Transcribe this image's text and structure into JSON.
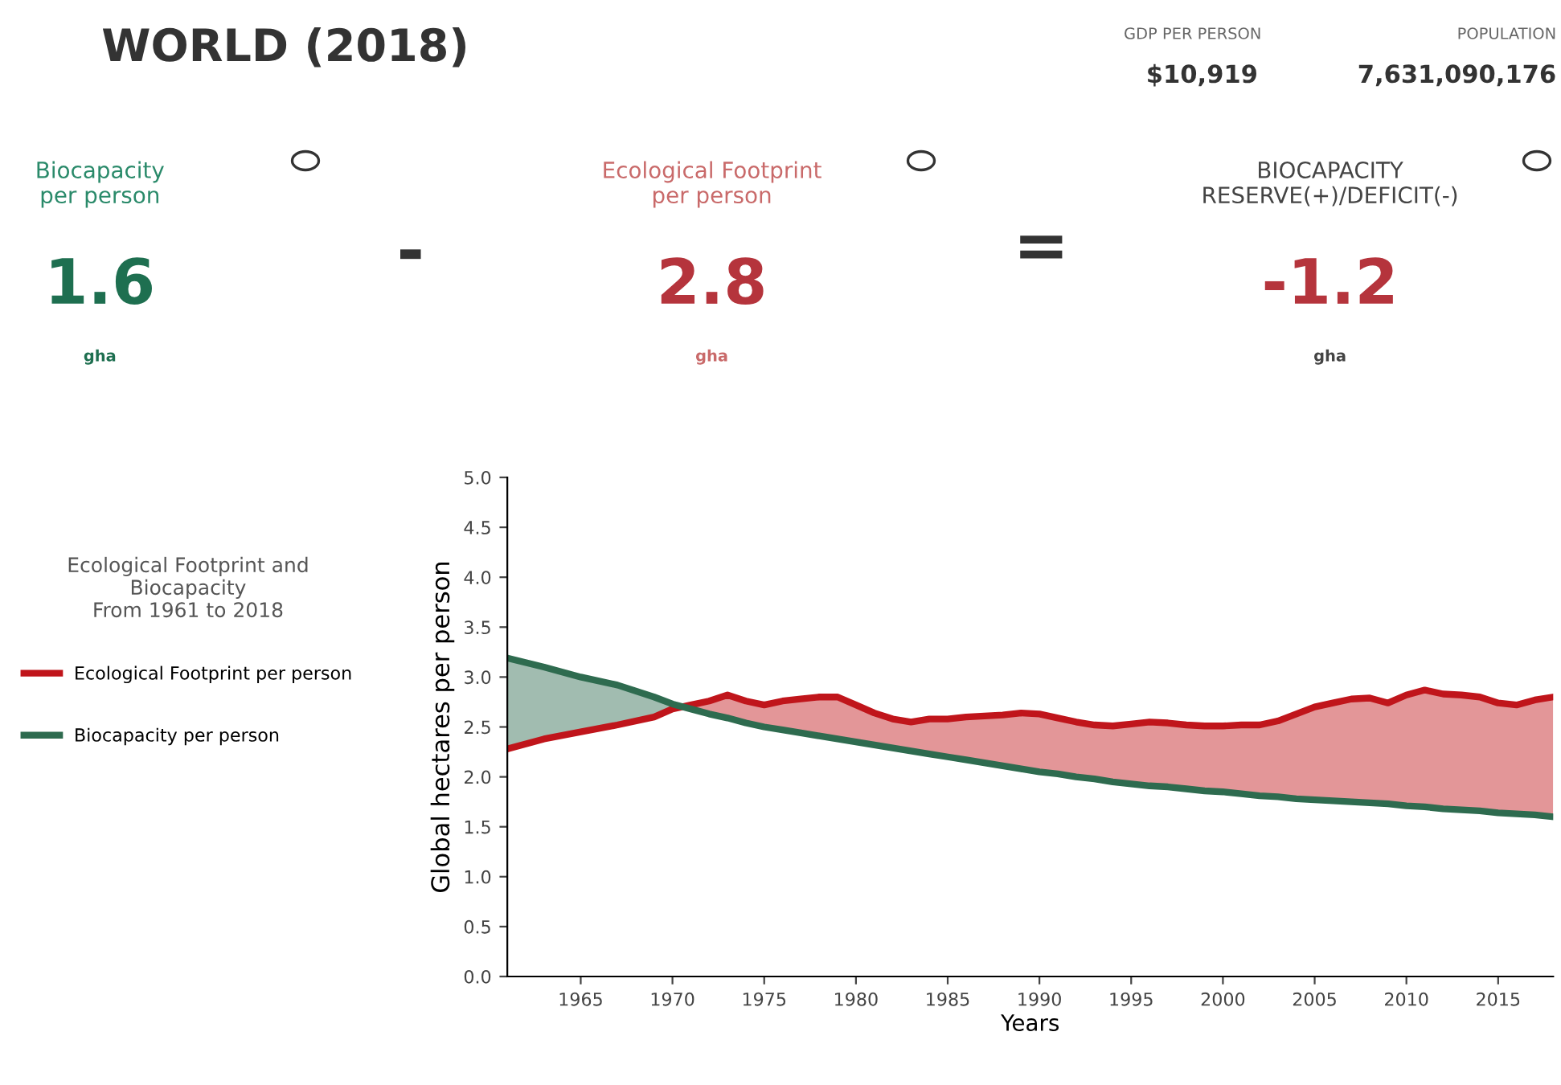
{
  "chart_data": [
    {
      "type": "other",
      "title": "WORLD (2018)",
      "annotations": [
        "GDP PER PERSON",
        "$10,919",
        "POPULATION",
        "7,631,090,176",
        "Biocapacity\nper person",
        "1.6",
        "gha",
        "-",
        "Ecological Footprint\nper person",
        "2.8",
        "gha",
        "=",
        "BIOCAPACITY\nRESERVE(+)/DEFICIT(-)",
        "-1.2",
        "gha"
      ]
    },
    {
      "type": "line",
      "xlabel": "Years",
      "ylabel": "Global hectares per person",
      "legend_title": "Ecological Footprint and\nBiocapacity\nFrom 1961 to 2018",
      "legend": "left",
      "grid": false,
      "x": [
        1961,
        1963,
        1965,
        1967,
        1969,
        1970,
        1971,
        1972,
        1973,
        1974,
        1975,
        1976,
        1977,
        1978,
        1979,
        1980,
        1981,
        1982,
        1983,
        1984,
        1985,
        1986,
        1987,
        1988,
        1989,
        1990,
        1991,
        1992,
        1993,
        1994,
        1995,
        1996,
        1997,
        1998,
        1999,
        2000,
        2001,
        2002,
        2003,
        2004,
        2005,
        2006,
        2007,
        2008,
        2009,
        2010,
        2011,
        2012,
        2013,
        2014,
        2015,
        2016,
        2017,
        2018
      ],
      "series": [
        {
          "name": "Ecological Footprint per person",
          "color": "#c0151b",
          "values": [
            2.28,
            2.38,
            2.45,
            2.52,
            2.6,
            2.68,
            2.72,
            2.76,
            2.82,
            2.76,
            2.72,
            2.76,
            2.78,
            2.8,
            2.8,
            2.72,
            2.64,
            2.58,
            2.55,
            2.58,
            2.58,
            2.6,
            2.61,
            2.62,
            2.64,
            2.63,
            2.59,
            2.55,
            2.52,
            2.51,
            2.53,
            2.55,
            2.54,
            2.52,
            2.51,
            2.51,
            2.52,
            2.52,
            2.56,
            2.63,
            2.7,
            2.74,
            2.78,
            2.79,
            2.74,
            2.82,
            2.87,
            2.83,
            2.82,
            2.8,
            2.74,
            2.72,
            2.77,
            2.8
          ]
        },
        {
          "name": "Biocapacity per person",
          "color": "#2e6b4f",
          "values": [
            3.19,
            3.1,
            3.0,
            2.92,
            2.8,
            2.73,
            2.68,
            2.63,
            2.59,
            2.54,
            2.5,
            2.47,
            2.44,
            2.41,
            2.38,
            2.35,
            2.32,
            2.29,
            2.26,
            2.23,
            2.2,
            2.17,
            2.14,
            2.11,
            2.08,
            2.05,
            2.03,
            2.0,
            1.98,
            1.95,
            1.93,
            1.91,
            1.9,
            1.88,
            1.86,
            1.85,
            1.83,
            1.81,
            1.8,
            1.78,
            1.77,
            1.76,
            1.75,
            1.74,
            1.73,
            1.71,
            1.7,
            1.68,
            1.67,
            1.66,
            1.64,
            1.63,
            1.62,
            1.6
          ]
        }
      ],
      "xlim": [
        1961,
        2018
      ],
      "xticks": [
        1965,
        1970,
        1975,
        1980,
        1985,
        1990,
        1995,
        2000,
        2005,
        2010,
        2015
      ],
      "ylim": [
        0.0,
        5.0
      ],
      "yticks": [
        {
          "value": 0,
          "label": "0.0"
        },
        0.5,
        {
          "value": 1,
          "label": "1.0"
        },
        1.5,
        {
          "value": 2,
          "label": "2.0"
        },
        2.5,
        {
          "value": 3,
          "label": "3.0"
        },
        3.5,
        {
          "value": 4,
          "label": "4.0"
        },
        4.5,
        {
          "value": 5,
          "label": "5.0"
        }
      ]
    }
  ]
}
